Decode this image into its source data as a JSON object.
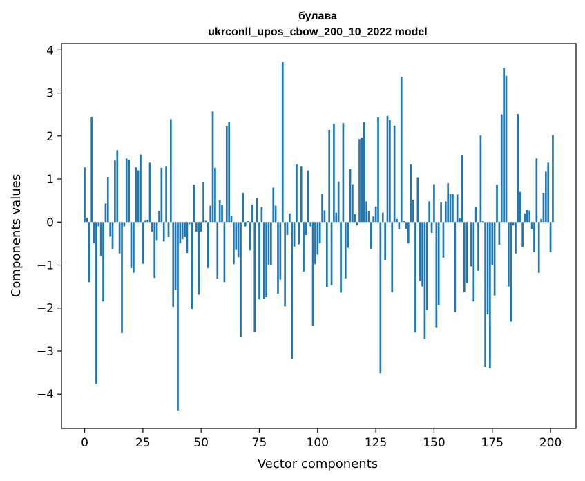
{
  "chart_data": {
    "type": "bar",
    "title_line1": "булава",
    "title_line2": "ukrconll_upos_cbow_200_10_2022 model",
    "xlabel": "Vector components",
    "ylabel": "Components values",
    "xlim": [
      -9.95,
      210.95
    ],
    "ylim": [
      -4.8,
      4.15
    ],
    "xticks": [
      0,
      25,
      50,
      75,
      100,
      125,
      150,
      175,
      200
    ],
    "yticks": [
      -4,
      -3,
      -2,
      -1,
      0,
      1,
      2,
      3,
      4
    ],
    "bar_color": "#1f77b4",
    "values": [
      1.27,
      0.1,
      -1.4,
      2.44,
      -0.5,
      -3.76,
      -0.1,
      -0.79,
      -1.85,
      0.43,
      1.05,
      -0.34,
      -0.62,
      1.43,
      1.67,
      -0.73,
      -2.58,
      -0.1,
      1.48,
      1.45,
      -1.07,
      -1.18,
      1.27,
      1.2,
      1.57,
      -0.97,
      0.03,
      0.05,
      1.38,
      -0.22,
      -1.3,
      -0.42,
      0.26,
      1.26,
      -0.45,
      1.3,
      -0.35,
      2.39,
      -1.97,
      -1.58,
      -4.38,
      -0.5,
      -0.4,
      -0.35,
      -0.72,
      -0.05,
      -2.02,
      0.87,
      -0.22,
      -1.69,
      -0.22,
      0.92,
      0.03,
      -1.07,
      0.38,
      2.57,
      1.26,
      -1.32,
      0.5,
      0.4,
      -1.4,
      2.23,
      2.33,
      0.15,
      -0.98,
      -0.65,
      -0.82,
      -2.68,
      0.68,
      -0.1,
      0.02,
      -0.66,
      0.41,
      -2.56,
      0.56,
      -1.8,
      0.35,
      -1.78,
      -1.75,
      -1.0,
      -1.0,
      0.8,
      0.38,
      -1.67,
      -1.34,
      3.72,
      -1.96,
      -0.3,
      0.2,
      -3.19,
      -0.57,
      1.34,
      -0.52,
      1.3,
      -1.15,
      -0.3,
      1.2,
      -0.1,
      -2.42,
      -0.98,
      -0.76,
      -0.5,
      0.66,
      0.27,
      -1.52,
      2.14,
      -1.47,
      2.28,
      0.22,
      0.94,
      -1.64,
      2.3,
      -1.31,
      -0.6,
      1.23,
      0.88,
      0.18,
      -0.08,
      1.93,
      1.96,
      2.32,
      0.48,
      0.26,
      -0.62,
      0.13,
      0.36,
      2.44,
      -3.52,
      0.22,
      -0.88,
      2.47,
      2.37,
      -1.63,
      2.24,
      0.07,
      -0.17,
      3.38,
      0.02,
      -0.16,
      -0.5,
      1.34,
      0.52,
      -2.57,
      1.04,
      -1.37,
      -1.5,
      -2.72,
      -2.05,
      0.48,
      -0.25,
      0.88,
      -2.45,
      -1.93,
      0.46,
      -0.83,
      0.48,
      0.9,
      0.65,
      0.65,
      -2.1,
      0.64,
      0.09,
      1.56,
      -1.63,
      -1.42,
      0.0,
      -1.03,
      -1.85,
      0.35,
      -1.13,
      2.01,
      0.02,
      -3.37,
      -2.15,
      -3.4,
      -1.0,
      -1.71,
      0.87,
      -0.53,
      2.5,
      3.58,
      3.4,
      -1.5,
      -2.32,
      -0.08,
      -0.73,
      2.51,
      0.7,
      -0.58,
      0.2,
      0.28,
      0.27,
      -0.16,
      -0.7,
      1.48,
      -1.18,
      0.07,
      0.68,
      1.17,
      1.38,
      -0.7,
      2.02
    ]
  }
}
